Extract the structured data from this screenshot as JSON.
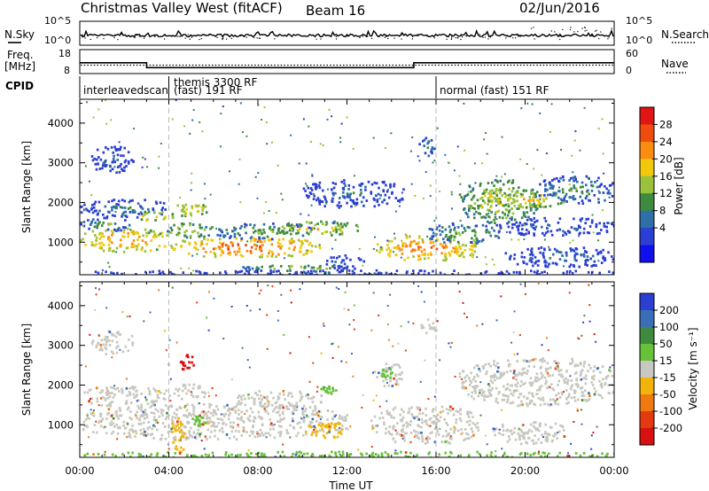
{
  "header": {
    "station": "Christmas Valley West (fitACF)",
    "beam": "Beam 16",
    "date": "02/Jun/2016"
  },
  "panel_labels": {
    "nsky": "N.Sky",
    "nsearch": "N.Search",
    "freq_line1": "Freq.",
    "freq_line2": "[MHz]",
    "nave": "Nave",
    "cpid": "CPID"
  },
  "chart_data": [
    {
      "type": "line",
      "panel": "noise",
      "series": [
        {
          "name": "N.Sky",
          "style": "solid"
        },
        {
          "name": "N.Search",
          "style": "dotted"
        }
      ],
      "yticks_left": [
        "10^5",
        "10^0"
      ],
      "yticks_right": [
        "10^5",
        "10^0"
      ],
      "xlim": [
        0,
        24
      ]
    },
    {
      "type": "line",
      "panel": "frequency",
      "yticks_left": [
        "18",
        "8"
      ],
      "yticks_right": [
        "60",
        "0"
      ],
      "freq_segments": [
        {
          "x0": 0,
          "x1": 3.0,
          "value": 12.5
        },
        {
          "x0": 3.0,
          "x1": 15.0,
          "value": 10.5
        },
        {
          "x0": 15.0,
          "x1": 24,
          "value": 12.5
        }
      ],
      "nave_level": 11.5
    },
    {
      "type": "table",
      "panel": "cpid",
      "segments": [
        {
          "start": 0.0,
          "label_line1": "",
          "label_line2": "interleavedscan"
        },
        {
          "start": 4.0,
          "label_line1": "themis 3300 RF",
          "label_line2": "(fast) 191 RF"
        },
        {
          "start": 16.0,
          "label_line1": "",
          "label_line2": "normal (fast) 151 RF"
        }
      ]
    },
    {
      "type": "heatmap",
      "panel": "power",
      "ylabel": "Slant Range [km]",
      "yticks": [
        1000,
        2000,
        3000,
        4000
      ],
      "ylim": [
        180,
        4600
      ],
      "colorbar": {
        "label": "Power [dB]",
        "ticks": [
          "28",
          "24",
          "20",
          "16",
          "12",
          "8",
          "4"
        ],
        "colors": [
          "#e01515",
          "#f04c10",
          "#fa8c10",
          "#f2c80a",
          "#9ac23c",
          "#3e8a3e",
          "#2d6fa6",
          "#2b3fd2",
          "#1010ee"
        ]
      },
      "blobs": [
        {
          "t0": 0.0,
          "t1": 4.0,
          "r0": 780,
          "r1": 1380,
          "v": 24
        },
        {
          "t0": 0.0,
          "t1": 2.2,
          "r0": 1300,
          "r1": 1650,
          "v": 13
        },
        {
          "t0": 0.5,
          "t1": 2.4,
          "r0": 2750,
          "r1": 3450,
          "v": 7
        },
        {
          "t0": 0.0,
          "t1": 4.0,
          "r0": 1650,
          "r1": 2100,
          "v": 9
        },
        {
          "t0": 2.5,
          "t1": 4.2,
          "r0": 1550,
          "r1": 1800,
          "v": 22
        },
        {
          "t0": 4.2,
          "t1": 5.8,
          "r0": 1650,
          "r1": 2050,
          "v": 20
        },
        {
          "t0": 3.8,
          "t1": 6.0,
          "r0": 1150,
          "r1": 1500,
          "v": 18
        },
        {
          "t0": 4.0,
          "t1": 10.8,
          "r0": 650,
          "r1": 1150,
          "v": 26
        },
        {
          "t0": 6.0,
          "t1": 10.5,
          "r0": 1100,
          "r1": 1500,
          "v": 14
        },
        {
          "t0": 8.5,
          "t1": 12.5,
          "r0": 1200,
          "r1": 1550,
          "v": 20
        },
        {
          "t0": 7.2,
          "t1": 12.0,
          "r0": 300,
          "r1": 470,
          "v": 16
        },
        {
          "t0": 10.0,
          "t1": 14.5,
          "r0": 1900,
          "r1": 2600,
          "v": 8
        },
        {
          "t0": 11.0,
          "t1": 12.8,
          "r0": 350,
          "r1": 700,
          "v": 9
        },
        {
          "t0": 13.2,
          "t1": 18.0,
          "r0": 550,
          "r1": 1200,
          "v": 25
        },
        {
          "t0": 15.5,
          "t1": 18.8,
          "r0": 1000,
          "r1": 1500,
          "v": 14
        },
        {
          "t0": 15.2,
          "t1": 16.0,
          "r0": 3200,
          "r1": 3700,
          "v": 12
        },
        {
          "t0": 17.0,
          "t1": 20.5,
          "r0": 1500,
          "r1": 2600,
          "v": 18
        },
        {
          "t0": 18.3,
          "t1": 21.8,
          "r0": 1900,
          "r1": 2300,
          "v": 21
        },
        {
          "t0": 20.5,
          "t1": 24.0,
          "r0": 2000,
          "r1": 2700,
          "v": 12
        },
        {
          "t0": 18.5,
          "t1": 24.0,
          "r0": 1200,
          "r1": 1650,
          "v": 7
        },
        {
          "t0": 19.0,
          "t1": 24.0,
          "r0": 400,
          "r1": 900,
          "v": 9
        },
        {
          "t0": 0.0,
          "t1": 24.0,
          "r0": 190,
          "r1": 330,
          "v": 6
        }
      ]
    },
    {
      "type": "heatmap",
      "panel": "velocity",
      "xlabel": "Time UT",
      "ylabel": "Slant Range [km]",
      "xticks": [
        "00:00",
        "04:00",
        "08:00",
        "12:00",
        "16:00",
        "20:00",
        "00:00"
      ],
      "yticks": [
        1000,
        2000,
        3000,
        4000
      ],
      "ylim": [
        180,
        4600
      ],
      "colorbar": {
        "label": "Velocity [m s⁻¹]",
        "ticks": [
          "200",
          "100",
          "50",
          "15",
          "-15",
          "-50",
          "-100",
          "-200"
        ],
        "colors": [
          "#2b3fd2",
          "#3a6fb8",
          "#3e8a3e",
          "#67c23a",
          "#c8c8c0",
          "#f2b40a",
          "#f07a10",
          "#e43a10",
          "#d81010"
        ]
      },
      "blobs": [
        {
          "t0": 0.0,
          "t1": 12.0,
          "r0": 650,
          "r1": 1550,
          "v": 0
        },
        {
          "t0": 0.0,
          "t1": 4.0,
          "r0": 1500,
          "r1": 2000,
          "v": 0
        },
        {
          "t0": 0.5,
          "t1": 2.4,
          "r0": 2800,
          "r1": 3400,
          "v": 0
        },
        {
          "t0": 4.2,
          "t1": 5.8,
          "r0": 1650,
          "r1": 2050,
          "v": 0
        },
        {
          "t0": 7.0,
          "t1": 11.0,
          "r0": 1400,
          "r1": 1900,
          "v": 0
        },
        {
          "t0": 10.0,
          "t1": 12.0,
          "r0": 700,
          "r1": 1100,
          "v": -35
        },
        {
          "t0": 4.0,
          "t1": 4.7,
          "r0": 300,
          "r1": 1200,
          "v": -35
        },
        {
          "t0": 5.0,
          "t1": 5.6,
          "r0": 1000,
          "r1": 1250,
          "v": 25
        },
        {
          "t0": 4.3,
          "t1": 5.2,
          "r0": 2400,
          "r1": 2800,
          "v": -250
        },
        {
          "t0": 10.8,
          "t1": 11.5,
          "r0": 1800,
          "r1": 2000,
          "v": 30
        },
        {
          "t0": 13.0,
          "t1": 18.0,
          "r0": 550,
          "r1": 1500,
          "v": 0
        },
        {
          "t0": 13.2,
          "t1": 14.5,
          "r0": 2000,
          "r1": 2600,
          "v": 0
        },
        {
          "t0": 13.5,
          "t1": 14.0,
          "r0": 2200,
          "r1": 2500,
          "v": 25
        },
        {
          "t0": 15.2,
          "t1": 16.0,
          "r0": 3300,
          "r1": 3700,
          "v": 0
        },
        {
          "t0": 17.0,
          "t1": 24.0,
          "r0": 1500,
          "r1": 2700,
          "v": 0
        },
        {
          "t0": 18.5,
          "t1": 22.0,
          "r0": 550,
          "r1": 1100,
          "v": 0
        },
        {
          "t0": 0.0,
          "t1": 24.0,
          "r0": 190,
          "r1": 350,
          "v": 25
        }
      ]
    }
  ]
}
